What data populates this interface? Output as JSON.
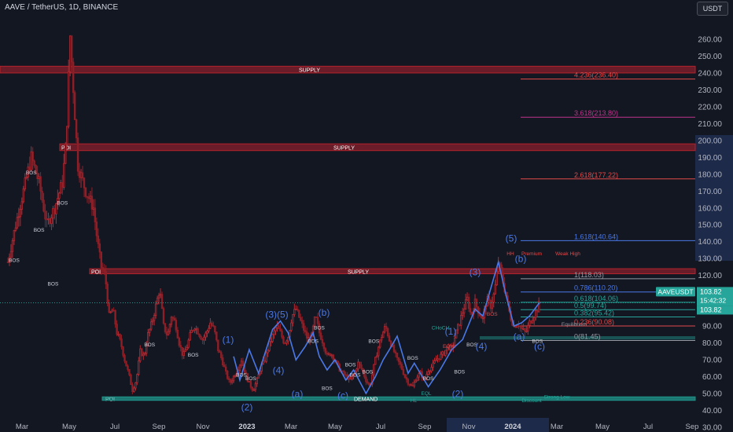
{
  "header": {
    "symbol_title": "AAVE / TetherUS, 1D, BINANCE",
    "currency_button": "USDT"
  },
  "colors": {
    "background": "#131722",
    "up_candle": "#a3222a",
    "down_candle": "#a3222a",
    "wave_line": "#4a78e6",
    "supply_zone": "#b2232d",
    "demand_zone": "#1f8f86",
    "axis_text": "#b2b5be",
    "price_label_bg": "#26a69a"
  },
  "chart_data": {
    "type": "line",
    "title": "AAVE / TetherUS, 1D, BINANCE",
    "price_axis": {
      "ticks": [
        30,
        40,
        50,
        60,
        70,
        80,
        90,
        100,
        110,
        120,
        130,
        140,
        150,
        160,
        170,
        180,
        190,
        200,
        210,
        220,
        230,
        240,
        250,
        260
      ],
      "labels": [
        "30.00",
        "40.00",
        "50.00",
        "60.00",
        "70.00",
        "80.00",
        "90.00",
        "100.00",
        "110.00",
        "120.00",
        "130.00",
        "140.00",
        "150.00",
        "160.00",
        "170.00",
        "180.00",
        "190.00",
        "200.00",
        "210.00",
        "220.00",
        "230.00",
        "240.00",
        "250.00",
        "260.00"
      ],
      "range": [
        28,
        266
      ]
    },
    "time_axis": {
      "labels": [
        "Mar",
        "May",
        "Jul",
        "Sep",
        "Nov",
        "2023",
        "Mar",
        "May",
        "Jul",
        "Sep",
        "Nov",
        "2024",
        "Mar",
        "May",
        "Jul",
        "Sep"
      ],
      "bold": [
        "2023",
        "2024"
      ]
    },
    "x_units": "days since Jan 1 2022",
    "price_path": [
      [
        0,
        128
      ],
      [
        10,
        150
      ],
      [
        20,
        170
      ],
      [
        30,
        190
      ],
      [
        40,
        175
      ],
      [
        50,
        150
      ],
      [
        60,
        160
      ],
      [
        70,
        175
      ],
      [
        75,
        200
      ],
      [
        80,
        262
      ],
      [
        90,
        185
      ],
      [
        100,
        170
      ],
      [
        110,
        160
      ],
      [
        115,
        140
      ],
      [
        120,
        125
      ],
      [
        125,
        120
      ],
      [
        130,
        96
      ],
      [
        135,
        100
      ],
      [
        140,
        86
      ],
      [
        145,
        80
      ],
      [
        150,
        70
      ],
      [
        155,
        62
      ],
      [
        160,
        52
      ],
      [
        165,
        58
      ],
      [
        170,
        75
      ],
      [
        175,
        72
      ],
      [
        180,
        85
      ],
      [
        185,
        92
      ],
      [
        190,
        102
      ],
      [
        195,
        112
      ],
      [
        200,
        90
      ],
      [
        205,
        84
      ],
      [
        210,
        96
      ],
      [
        215,
        92
      ],
      [
        220,
        80
      ],
      [
        225,
        72
      ],
      [
        230,
        78
      ],
      [
        235,
        86
      ],
      [
        240,
        90
      ],
      [
        245,
        86
      ],
      [
        250,
        82
      ],
      [
        255,
        86
      ],
      [
        260,
        92
      ],
      [
        265,
        88
      ],
      [
        270,
        76
      ],
      [
        275,
        70
      ],
      [
        280,
        62
      ],
      [
        285,
        56
      ],
      [
        290,
        60
      ],
      [
        295,
        64
      ],
      [
        300,
        70
      ],
      [
        305,
        62
      ],
      [
        310,
        56
      ],
      [
        315,
        52
      ],
      [
        320,
        58
      ],
      [
        325,
        66
      ],
      [
        330,
        70
      ],
      [
        335,
        78
      ],
      [
        340,
        84
      ],
      [
        345,
        90
      ],
      [
        350,
        86
      ],
      [
        355,
        80
      ],
      [
        360,
        84
      ],
      [
        365,
        96
      ],
      [
        370,
        100
      ],
      [
        375,
        94
      ],
      [
        380,
        88
      ],
      [
        385,
        82
      ],
      [
        390,
        84
      ],
      [
        395,
        96
      ],
      [
        400,
        86
      ],
      [
        405,
        80
      ],
      [
        410,
        72
      ],
      [
        415,
        74
      ],
      [
        420,
        70
      ],
      [
        425,
        65
      ],
      [
        430,
        62
      ],
      [
        435,
        60
      ],
      [
        440,
        58
      ],
      [
        445,
        62
      ],
      [
        450,
        68
      ],
      [
        455,
        64
      ],
      [
        460,
        58
      ],
      [
        465,
        54
      ],
      [
        470,
        66
      ],
      [
        475,
        76
      ],
      [
        480,
        84
      ],
      [
        485,
        90
      ],
      [
        490,
        82
      ],
      [
        495,
        76
      ],
      [
        500,
        70
      ],
      [
        505,
        66
      ],
      [
        510,
        60
      ],
      [
        515,
        56
      ],
      [
        520,
        54
      ],
      [
        525,
        60
      ],
      [
        530,
        62
      ],
      [
        535,
        58
      ],
      [
        540,
        64
      ],
      [
        545,
        66
      ],
      [
        550,
        70
      ],
      [
        555,
        72
      ],
      [
        560,
        74
      ],
      [
        565,
        78
      ],
      [
        570,
        76
      ],
      [
        575,
        85
      ],
      [
        580,
        92
      ],
      [
        585,
        100
      ],
      [
        590,
        106
      ],
      [
        595,
        96
      ],
      [
        600,
        104
      ],
      [
        605,
        98
      ],
      [
        610,
        94
      ],
      [
        615,
        106
      ],
      [
        620,
        102
      ],
      [
        625,
        110
      ],
      [
        630,
        128
      ],
      [
        635,
        118
      ],
      [
        640,
        108
      ],
      [
        645,
        96
      ],
      [
        650,
        90
      ],
      [
        655,
        92
      ],
      [
        660,
        88
      ],
      [
        665,
        86
      ],
      [
        670,
        92
      ],
      [
        675,
        96
      ],
      [
        680,
        100
      ],
      [
        683,
        103.82
      ]
    ],
    "wave_path": [
      [
        290,
        72
      ],
      [
        298,
        58
      ],
      [
        310,
        76
      ],
      [
        322,
        62
      ],
      [
        340,
        88
      ],
      [
        350,
        93
      ],
      [
        360,
        86
      ],
      [
        370,
        70
      ],
      [
        382,
        78
      ],
      [
        392,
        86
      ],
      [
        400,
        72
      ],
      [
        410,
        64
      ],
      [
        420,
        70
      ],
      [
        434,
        58
      ],
      [
        444,
        64
      ],
      [
        460,
        50
      ],
      [
        472,
        60
      ],
      [
        482,
        70
      ],
      [
        490,
        76
      ],
      [
        500,
        84
      ],
      [
        514,
        62
      ],
      [
        522,
        68
      ],
      [
        540,
        54
      ],
      [
        555,
        64
      ],
      [
        570,
        76
      ],
      [
        584,
        82
      ],
      [
        600,
        100
      ],
      [
        610,
        96
      ],
      [
        630,
        128
      ],
      [
        640,
        108
      ],
      [
        650,
        90
      ],
      [
        660,
        92
      ],
      [
        670,
        96
      ],
      [
        683,
        104
      ]
    ],
    "fib_levels": [
      {
        "label": "4.236(236.40)",
        "price": 236.4,
        "color": "#e24a4a"
      },
      {
        "label": "3.618(213.80)",
        "price": 213.8,
        "color": "#c0348c"
      },
      {
        "label": "2.618(177.22)",
        "price": 177.22,
        "color": "#e24a4a"
      },
      {
        "label": "1.618(140.64)",
        "price": 140.64,
        "color": "#4a78e6"
      },
      {
        "label": "1(118.03)",
        "price": 118.03,
        "color": "#9598a1"
      },
      {
        "label": "0.786(110.20)",
        "price": 110.2,
        "color": "#4a78e6"
      },
      {
        "label": "0.618(104.06)",
        "price": 104.06,
        "color": "#26a69a"
      },
      {
        "label": "0.5(99.74)",
        "price": 99.74,
        "color": "#26a69a"
      },
      {
        "label": "0.382(95.42)",
        "price": 95.42,
        "color": "#26a69a"
      },
      {
        "label": "0.236(90.08)",
        "price": 90.08,
        "color": "#e24a4a"
      },
      {
        "label": "0(81.45)",
        "price": 81.45,
        "color": "#9598a1"
      }
    ],
    "zones": [
      {
        "label": "SUPPLY",
        "kind": "supply",
        "top": 244,
        "bottom": 240
      },
      {
        "label": "SUPPLY",
        "kind": "supply",
        "top": 198,
        "bottom": 194
      },
      {
        "label": "SUPPLY",
        "kind": "supply",
        "top": 124,
        "bottom": 121
      },
      {
        "label": "POI",
        "kind": "poi",
        "top": 198,
        "bottom": 194
      },
      {
        "label": "POI",
        "kind": "poi",
        "top": 124,
        "bottom": 121
      },
      {
        "label": "POI",
        "kind": "demand",
        "top": 48,
        "bottom": 46
      },
      {
        "label": "DEMAND",
        "kind": "demand",
        "top": 48,
        "bottom": 46
      }
    ],
    "annotations": [
      {
        "text": "BOS",
        "kind": "bos"
      },
      {
        "text": "CHoCH",
        "kind": "choch"
      },
      {
        "text": "EQH",
        "kind": "eqh"
      },
      {
        "text": "EQL",
        "kind": "eql"
      },
      {
        "text": "HL",
        "kind": "hl"
      },
      {
        "text": "HH",
        "kind": "hh"
      },
      {
        "text": "Premium",
        "kind": "premium"
      },
      {
        "text": "Weak High",
        "kind": "weak"
      },
      {
        "text": "Equilibrium",
        "kind": "eq"
      },
      {
        "text": "Discount",
        "kind": "discount"
      },
      {
        "text": "Strong Low",
        "kind": "strong"
      }
    ],
    "wave_labels": [
      {
        "text": "(1)"
      },
      {
        "text": "(2)"
      },
      {
        "text": "(3)(5)"
      },
      {
        "text": "(4)"
      },
      {
        "text": "(a)"
      },
      {
        "text": "(b)"
      },
      {
        "text": "(c)"
      },
      {
        "text": "(1)"
      },
      {
        "text": "(2)"
      },
      {
        "text": "(3)"
      },
      {
        "text": "(4)"
      },
      {
        "text": "(5)"
      },
      {
        "text": "(b)"
      },
      {
        "text": "(a)"
      },
      {
        "text": "(c)"
      }
    ],
    "last_price": {
      "symbol": "AAVEUSDT",
      "value": "103.82",
      "countdown": "15:42:32",
      "price": 103.82
    },
    "grid": false
  }
}
